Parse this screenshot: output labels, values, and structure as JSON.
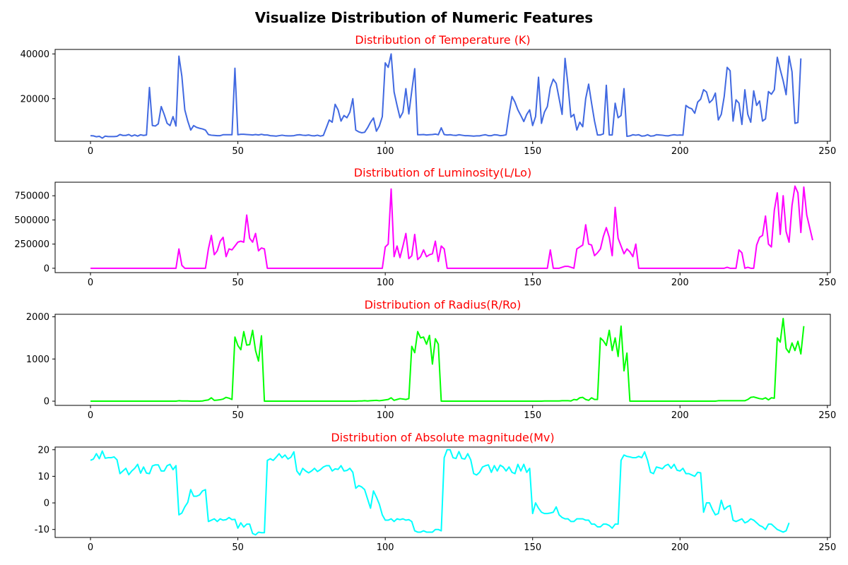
{
  "figure_title": "Visualize Distribution of Numeric Features",
  "chart_data": [
    {
      "type": "line",
      "title": "Distribution of Temperature (K)",
      "title_color": "#ff0000",
      "color": "#4169e1",
      "xlim": [
        -12,
        251
      ],
      "ylim": [
        1000,
        42000
      ],
      "xticks": [
        0,
        50,
        100,
        150,
        200,
        250
      ],
      "yticks": [
        20000,
        40000
      ],
      "x_start": 0,
      "values": [
        3500,
        3400,
        3000,
        3200,
        2400,
        3300,
        3100,
        3100,
        3100,
        3200,
        4000,
        3600,
        3600,
        4000,
        3300,
        3800,
        3300,
        3900,
        3600,
        3800,
        25000,
        8000,
        7800,
        8800,
        16500,
        13000,
        9000,
        8000,
        12000,
        7800,
        39000,
        30000,
        15000,
        10000,
        6000,
        8000,
        7200,
        6800,
        6500,
        6000,
        4000,
        3700,
        3600,
        3500,
        3500,
        3900,
        3900,
        3900,
        3900,
        33600,
        3900,
        4100,
        4100,
        4000,
        3900,
        3800,
        4000,
        3800,
        4100,
        3800,
        3800,
        3500,
        3400,
        3300,
        3500,
        3700,
        3500,
        3400,
        3400,
        3500,
        3800,
        3900,
        3700,
        3600,
        3800,
        3500,
        3400,
        3700,
        3300,
        3600,
        7000,
        10500,
        9500,
        17500,
        15000,
        10000,
        12500,
        11500,
        14000,
        20000,
        6000,
        5200,
        4800,
        5000,
        7000,
        9500,
        11400,
        5500,
        7800,
        12000,
        36000,
        34000,
        40000,
        23000,
        17000,
        11500,
        14000,
        24500,
        13200,
        23500,
        33400,
        3900,
        3900,
        4000,
        3800,
        3900,
        4000,
        4200,
        3900,
        7000,
        4000,
        3800,
        3900,
        3700,
        3600,
        3900,
        3700,
        3500,
        3500,
        3400,
        3300,
        3400,
        3400,
        3700,
        3900,
        3500,
        3500,
        3900,
        3800,
        3500,
        3600,
        3900,
        13000,
        21000,
        18500,
        15000,
        12500,
        9800,
        13000,
        15000,
        8000,
        12000,
        29600,
        9000,
        14000,
        16500,
        25000,
        28700,
        26800,
        20000,
        13000,
        38000,
        26000,
        11800,
        13000,
        6000,
        9500,
        7500,
        20000,
        26500,
        18000,
        10000,
        3800,
        3800,
        4300,
        26000,
        3800,
        3800,
        18000,
        11500,
        12500,
        24500,
        3200,
        3400,
        3900,
        3700,
        3900,
        3300,
        3400,
        3900,
        3300,
        3400,
        3900,
        3800,
        3700,
        3500,
        3400,
        3700,
        3900,
        3700,
        3800,
        3700,
        17000,
        16000,
        15500,
        13500,
        18500,
        19800,
        24000,
        23000,
        18200,
        19500,
        22500,
        10500,
        13000,
        21000,
        34000,
        32500,
        10000,
        19500,
        18000,
        8500,
        24000,
        13000,
        9500,
        23500,
        17000,
        19000,
        10000,
        11000,
        23200,
        22000,
        24000,
        38500,
        33000,
        28000,
        21800,
        39000,
        32000,
        9000,
        9400,
        38000
      ]
    },
    {
      "type": "line",
      "title": "Distribution of Luminosity(L/Lo)",
      "title_color": "#ff0000",
      "color": "#ff00ff",
      "xlim": [
        -12,
        251
      ],
      "ylim": [
        -45000,
        890000
      ],
      "xticks": [
        0,
        50,
        100,
        150,
        200,
        250
      ],
      "yticks": [
        0,
        250000,
        500000,
        750000
      ],
      "x_start": 0,
      "values": [
        0,
        0,
        0,
        0,
        0,
        0,
        0,
        0,
        0,
        0,
        0,
        0,
        0,
        0,
        0,
        0,
        0,
        0,
        0,
        0,
        0,
        0,
        0,
        0,
        0,
        0,
        0,
        0,
        0,
        0,
        200000,
        30000,
        0,
        0,
        0,
        0,
        0,
        0,
        0,
        0,
        200000,
        340000,
        140000,
        180000,
        280000,
        320000,
        120000,
        200000,
        190000,
        230000,
        270000,
        280000,
        270000,
        550000,
        310000,
        270000,
        360000,
        180000,
        210000,
        200000,
        0,
        0,
        0,
        0,
        0,
        0,
        0,
        0,
        0,
        0,
        0,
        0,
        0,
        0,
        0,
        0,
        0,
        0,
        0,
        0,
        0,
        0,
        0,
        0,
        0,
        0,
        0,
        0,
        0,
        0,
        0,
        0,
        0,
        0,
        0,
        0,
        0,
        0,
        0,
        0,
        220000,
        250000,
        820000,
        120000,
        230000,
        110000,
        230000,
        360000,
        100000,
        130000,
        350000,
        90000,
        120000,
        190000,
        120000,
        140000,
        150000,
        280000,
        70000,
        230000,
        200000,
        0,
        0,
        0,
        0,
        0,
        0,
        0,
        0,
        0,
        0,
        0,
        0,
        0,
        0,
        0,
        0,
        0,
        0,
        0,
        0,
        0,
        0,
        0,
        0,
        0,
        0,
        0,
        0,
        0,
        0,
        0,
        0,
        0,
        0,
        0,
        190000,
        0,
        0,
        0,
        10000,
        20000,
        20000,
        10000,
        0,
        200000,
        220000,
        240000,
        450000,
        250000,
        240000,
        130000,
        160000,
        200000,
        330000,
        420000,
        320000,
        130000,
        630000,
        310000,
        230000,
        150000,
        200000,
        170000,
        120000,
        250000,
        0,
        0,
        0,
        0,
        0,
        0,
        0,
        0,
        0,
        0,
        0,
        0,
        0,
        0,
        0,
        0,
        0,
        0,
        0,
        0,
        0,
        0,
        0,
        0,
        0,
        0,
        0,
        0,
        0,
        0,
        10000,
        0,
        0,
        0,
        190000,
        160000,
        0,
        10000,
        0,
        0,
        240000,
        320000,
        340000,
        540000,
        250000,
        220000,
        600000,
        780000,
        350000,
        750000,
        380000,
        270000,
        650000,
        850000,
        780000,
        370000,
        840000,
        550000,
        420000,
        290000
      ]
    },
    {
      "type": "line",
      "title": "Distribution of Radius(R/Ro)",
      "title_color": "#ff0000",
      "color": "#00ff00",
      "xlim": [
        -12,
        251
      ],
      "ylim": [
        -100,
        2060
      ],
      "xticks": [
        0,
        50,
        100,
        150,
        200,
        250
      ],
      "yticks": [
        0,
        1000,
        2000
      ],
      "x_start": 0,
      "values": [
        0,
        0,
        0,
        0,
        0,
        0,
        0,
        0,
        0,
        0,
        0,
        0,
        0,
        0,
        0,
        0,
        0,
        0,
        0,
        0,
        0,
        0,
        0,
        0,
        0,
        0,
        0,
        0,
        0,
        0,
        10,
        5,
        5,
        5,
        0,
        0,
        0,
        0,
        5,
        20,
        30,
        80,
        20,
        25,
        35,
        50,
        90,
        70,
        40,
        1520,
        1320,
        1220,
        1650,
        1330,
        1340,
        1680,
        1200,
        950,
        1550,
        0,
        0,
        0,
        0,
        0,
        0,
        0,
        0,
        0,
        0,
        0,
        0,
        0,
        0,
        0,
        0,
        0,
        0,
        0,
        0,
        0,
        0,
        0,
        0,
        0,
        0,
        0,
        0,
        0,
        0,
        0,
        0,
        5,
        5,
        10,
        5,
        10,
        15,
        20,
        10,
        20,
        30,
        40,
        80,
        20,
        40,
        60,
        50,
        40,
        60,
        1300,
        1150,
        1650,
        1500,
        1520,
        1350,
        1560,
        880,
        1480,
        1350,
        0,
        0,
        0,
        0,
        0,
        0,
        0,
        0,
        0,
        0,
        0,
        0,
        0,
        0,
        0,
        0,
        0,
        0,
        0,
        0,
        0,
        0,
        0,
        0,
        0,
        0,
        0,
        0,
        0,
        0,
        0,
        0,
        0,
        0,
        0,
        5,
        5,
        5,
        5,
        5,
        5,
        10,
        10,
        10,
        5,
        40,
        30,
        80,
        90,
        40,
        20,
        80,
        40,
        40,
        1500,
        1430,
        1320,
        1680,
        1200,
        1500,
        1060,
        1780,
        720,
        1140,
        0,
        0,
        0,
        0,
        0,
        0,
        0,
        0,
        0,
        0,
        0,
        0,
        0,
        0,
        0,
        0,
        0,
        0,
        0,
        0,
        0,
        0,
        0,
        0,
        0,
        0,
        0,
        0,
        0,
        0,
        10,
        10,
        10,
        10,
        10,
        10,
        10,
        10,
        10,
        10,
        40,
        90,
        100,
        80,
        60,
        50,
        80,
        30,
        80,
        70,
        1500,
        1400,
        1960,
        1250,
        1150,
        1380,
        1200,
        1420,
        1120,
        1780
      ]
    },
    {
      "type": "line",
      "title": "Distribution of Absolute magnitude(Mv)",
      "title_color": "#ff0000",
      "color": "#00ffff",
      "xlim": [
        -12,
        251
      ],
      "ylim": [
        -13,
        21
      ],
      "xticks": [
        0,
        50,
        100,
        150,
        200,
        250
      ],
      "yticks": [
        -10,
        0,
        10,
        20
      ],
      "x_start": 0,
      "values": [
        16,
        16.5,
        18.5,
        16.6,
        19.5,
        16.8,
        17,
        17,
        17.3,
        16.2,
        11,
        12,
        13,
        10.6,
        12,
        13,
        14.5,
        11.2,
        13.5,
        11.2,
        11,
        13.9,
        14.3,
        14.3,
        12,
        12,
        14,
        14.5,
        12.5,
        14,
        -4.5,
        -3.8,
        -1.5,
        0.2,
        5,
        2.5,
        2.5,
        3,
        4.5,
        5,
        -7,
        -6.5,
        -6,
        -7,
        -6,
        -6.5,
        -6.3,
        -5.5,
        -6.3,
        -6.2,
        -9.5,
        -7.5,
        -9.1,
        -8,
        -8,
        -11.5,
        -12,
        -11,
        -11.2,
        -11.2,
        16,
        16.6,
        16,
        17.2,
        18.5,
        17,
        18,
        16.5,
        17.2,
        19.2,
        12,
        10.5,
        13,
        12,
        11.3,
        12,
        13,
        11.8,
        12.5,
        13.5,
        14,
        14,
        12,
        12.8,
        12.6,
        14,
        12,
        12.2,
        13,
        11.5,
        5.5,
        6.5,
        6,
        5,
        1.5,
        -2,
        4.5,
        2.2,
        -0.5,
        -4.5,
        -6.5,
        -6.5,
        -6,
        -7,
        -6,
        -6.3,
        -6,
        -6.5,
        -6.3,
        -7,
        -10.5,
        -11,
        -11,
        -10.5,
        -11,
        -11,
        -11,
        -10,
        -10,
        -10.5,
        17,
        20,
        20,
        17,
        16.7,
        19.3,
        16.7,
        16.5,
        18.5,
        16.2,
        11,
        10.5,
        11.5,
        13.5,
        14,
        14.3,
        11.5,
        14,
        12,
        14.2,
        13.5,
        12,
        13.5,
        11.5,
        11,
        14.5,
        12,
        14.5,
        11.5,
        13,
        -4,
        0,
        -2,
        -3.5,
        -4,
        -4,
        -3.8,
        -3.5,
        -1.5,
        -4.5,
        -5.5,
        -6,
        -6,
        -7,
        -7,
        -6,
        -6,
        -6,
        -6.5,
        -6.5,
        -8,
        -8,
        -9,
        -9,
        -8,
        -8,
        -8.5,
        -9.5,
        -8,
        -8,
        16,
        18,
        17.5,
        17.3,
        17,
        17,
        17.5,
        17,
        19.2,
        16,
        11.5,
        11,
        13.5,
        13.2,
        12.8,
        14,
        14.5,
        13,
        14.5,
        12.3,
        12,
        13,
        11,
        11,
        10.5,
        10,
        11.5,
        11.3,
        -3.5,
        0,
        0,
        -2.5,
        -4.5,
        -4,
        1,
        -2.5,
        -1.5,
        -1,
        -6.5,
        -7,
        -6.5,
        -6,
        -7.5,
        -7,
        -6,
        -6.5,
        -7.5,
        -8.5,
        -9,
        -10,
        -8,
        -8,
        -9,
        -10,
        -10.5,
        -11,
        -10.5,
        -7.5
      ]
    }
  ]
}
